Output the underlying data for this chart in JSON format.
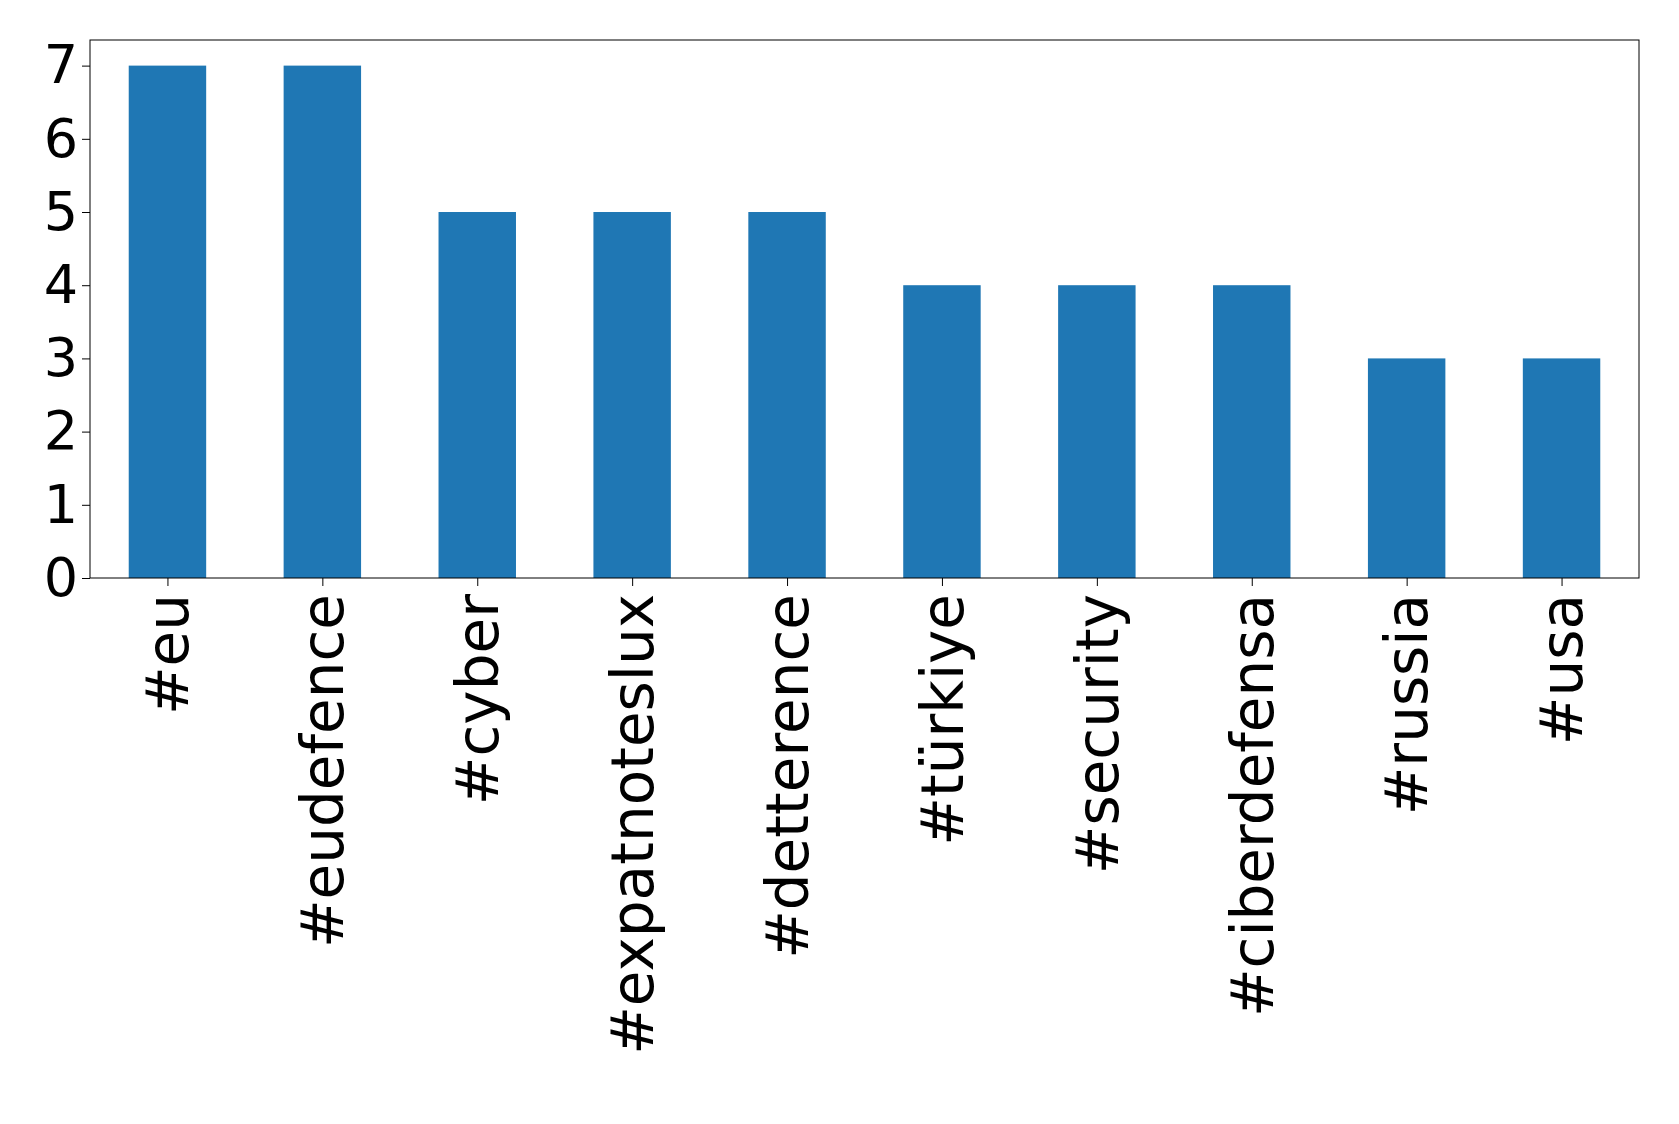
{
  "chart_data": {
    "type": "bar",
    "categories": [
      "#eu",
      "#eudefence",
      "#cyber",
      "#expatnoteslux",
      "#detterence",
      "#türkiye",
      "#security",
      "#ciberdefensa",
      "#russia",
      "#usa"
    ],
    "values": [
      7,
      7,
      5,
      5,
      5,
      4,
      4,
      4,
      3,
      3
    ],
    "color": "#1f77b4",
    "ylim": [
      0,
      7.35
    ],
    "yticks": [
      0,
      1,
      2,
      3,
      4,
      5,
      6,
      7
    ],
    "grid": false
  }
}
